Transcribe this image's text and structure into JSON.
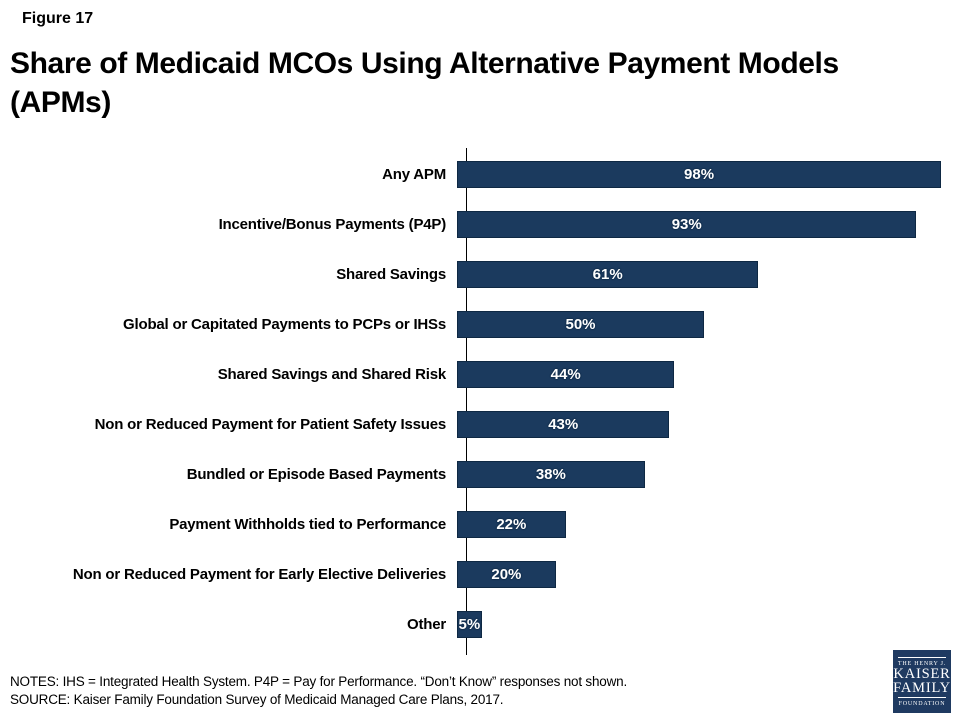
{
  "figure_label": "Figure 17",
  "title_lines": [
    "Share of Medicaid MCOs Using Alternative Payment Models",
    "(APMs)"
  ],
  "chart_data": {
    "type": "bar",
    "orientation": "horizontal",
    "title": "Share of Medicaid MCOs Using Alternative Payment Models (APMs)",
    "categories": [
      "Any APM",
      "Incentive/Bonus Payments (P4P)",
      "Shared Savings",
      "Global or Capitated Payments to PCPs or IHSs",
      "Shared Savings and Shared Risk",
      "Non or Reduced Payment for Patient Safety Issues",
      "Bundled or Episode Based Payments",
      "Payment Withholds tied to Performance",
      "Non or Reduced Payment for Early Elective Deliveries",
      "Other"
    ],
    "values": [
      98,
      93,
      61,
      50,
      44,
      43,
      38,
      22,
      20,
      5
    ],
    "value_labels": [
      "98%",
      "93%",
      "61%",
      "50%",
      "44%",
      "43%",
      "38%",
      "22%",
      "20%",
      "5%"
    ],
    "xlim": [
      0,
      100
    ],
    "grid": false,
    "legend": false,
    "bar_color": "#1b3a5e",
    "bar_border_color": "#0e2843",
    "value_label_color": "#ffffff",
    "axis_color": "#000000"
  },
  "notes": "NOTES: IHS = Integrated Health System. P4P = Pay for Performance. “Don’t Know” responses not shown.",
  "source": "SOURCE: Kaiser Family Foundation Survey of Medicaid Managed Care Plans, 2017.",
  "logo": {
    "line1": "THE HENRY J.",
    "line2": "KAISER",
    "line3": "FAMILY",
    "line4": "FOUNDATION"
  }
}
